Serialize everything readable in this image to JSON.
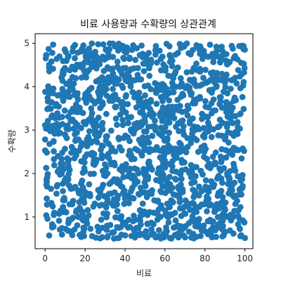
{
  "chart_data": {
    "type": "scatter",
    "title": "비료 사용량과 수확량의 상관관계",
    "xlabel": "비료",
    "ylabel": "수확량",
    "xlim": [
      -5,
      104
    ],
    "ylim": [
      0.27,
      5.22
    ],
    "xticks": [
      0,
      20,
      40,
      60,
      80,
      100
    ],
    "yticks": [
      1,
      2,
      3,
      4,
      5
    ],
    "grid": false,
    "series": [
      {
        "color": "#1f77b4",
        "point_count": 1500,
        "x_range": [
          0,
          100
        ],
        "y_range": [
          0.5,
          5.0
        ],
        "distribution": "uniform"
      }
    ]
  }
}
